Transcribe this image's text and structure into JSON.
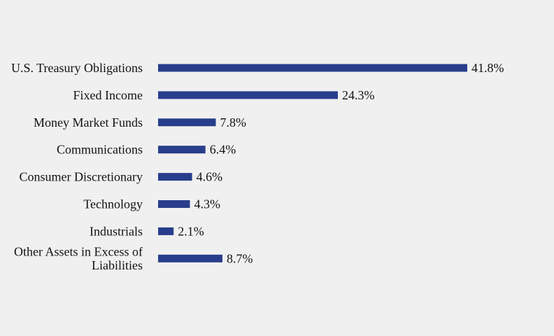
{
  "chart_data": {
    "type": "bar",
    "orientation": "horizontal",
    "title": "",
    "xlabel": "",
    "ylabel": "",
    "grid": false,
    "legend": "none",
    "xlim": [
      0,
      41.8
    ],
    "bar_color": "#283e8c",
    "categories": [
      [
        "U.S. Treasury Obligations"
      ],
      [
        "Fixed Income"
      ],
      [
        "Money Market Funds"
      ],
      [
        "Communications"
      ],
      [
        "Consumer Discretionary"
      ],
      [
        "Technology"
      ],
      [
        "Industrials"
      ],
      [
        "Other Assets in Excess of",
        "Liabilities"
      ]
    ],
    "values": [
      41.8,
      24.3,
      7.8,
      6.4,
      4.6,
      4.3,
      2.1,
      8.7
    ],
    "value_labels": [
      "41.8%",
      "24.3%",
      "7.8%",
      "6.4%",
      "4.6%",
      "4.3%",
      "2.1%",
      "8.7%"
    ]
  }
}
